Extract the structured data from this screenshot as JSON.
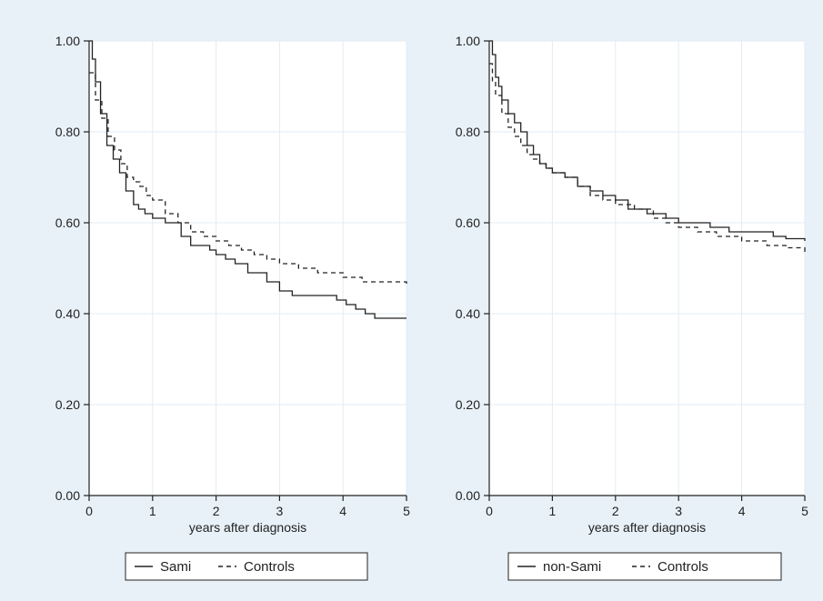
{
  "colors": {
    "background": "#e8f1f8",
    "plot_background": "#ffffff",
    "grid": "#e2ecf4",
    "line": "#222222"
  },
  "chart_data": [
    {
      "type": "line",
      "step": true,
      "xlabel": "years after diagnosis",
      "ylabel": "",
      "xlim": [
        0,
        5
      ],
      "ylim": [
        0,
        1
      ],
      "x_ticks": [
        "0",
        "1",
        "2",
        "3",
        "4",
        "5"
      ],
      "y_ticks": [
        "0.00",
        "0.20",
        "0.40",
        "0.60",
        "0.80",
        "1.00"
      ],
      "grid": true,
      "legend": "bottom",
      "series": [
        {
          "name": "Sami",
          "style": "solid",
          "x": [
            0,
            0.05,
            0.1,
            0.18,
            0.28,
            0.38,
            0.48,
            0.58,
            0.7,
            0.78,
            0.88,
            1.0,
            1.2,
            1.45,
            1.6,
            1.9,
            2.0,
            2.15,
            2.3,
            2.5,
            2.8,
            3.0,
            3.2,
            3.5,
            3.9,
            4.05,
            4.2,
            4.35,
            4.5,
            5.0
          ],
          "y": [
            1.0,
            0.96,
            0.91,
            0.84,
            0.77,
            0.74,
            0.71,
            0.67,
            0.64,
            0.63,
            0.62,
            0.61,
            0.6,
            0.57,
            0.55,
            0.54,
            0.53,
            0.52,
            0.51,
            0.49,
            0.47,
            0.45,
            0.44,
            0.44,
            0.43,
            0.42,
            0.41,
            0.4,
            0.39,
            0.39
          ]
        },
        {
          "name": "Controls",
          "style": "dashed",
          "x": [
            0,
            0.1,
            0.2,
            0.3,
            0.4,
            0.5,
            0.6,
            0.7,
            0.8,
            0.9,
            1.0,
            1.2,
            1.4,
            1.6,
            1.8,
            2.0,
            2.2,
            2.4,
            2.6,
            2.8,
            3.0,
            3.3,
            3.6,
            4.0,
            4.3,
            4.6,
            5.0
          ],
          "y": [
            0.93,
            0.87,
            0.83,
            0.79,
            0.76,
            0.73,
            0.7,
            0.69,
            0.68,
            0.66,
            0.65,
            0.62,
            0.6,
            0.58,
            0.57,
            0.56,
            0.55,
            0.54,
            0.53,
            0.52,
            0.51,
            0.5,
            0.49,
            0.48,
            0.47,
            0.47,
            0.46
          ]
        }
      ]
    },
    {
      "type": "line",
      "step": true,
      "xlabel": "years after diagnosis",
      "ylabel": "",
      "xlim": [
        0,
        5
      ],
      "ylim": [
        0,
        1
      ],
      "x_ticks": [
        "0",
        "1",
        "2",
        "3",
        "4",
        "5"
      ],
      "y_ticks": [
        "0.00",
        "0.20",
        "0.40",
        "0.60",
        "0.80",
        "1.00"
      ],
      "grid": true,
      "legend": "bottom",
      "series": [
        {
          "name": "non-Sami",
          "style": "solid",
          "x": [
            0,
            0.05,
            0.1,
            0.15,
            0.2,
            0.3,
            0.4,
            0.5,
            0.6,
            0.7,
            0.8,
            0.9,
            1.0,
            1.2,
            1.4,
            1.6,
            1.8,
            2.0,
            2.2,
            2.5,
            2.8,
            3.0,
            3.2,
            3.5,
            3.8,
            4.0,
            4.5,
            4.7,
            5.0
          ],
          "y": [
            1.0,
            0.97,
            0.92,
            0.9,
            0.87,
            0.84,
            0.82,
            0.8,
            0.77,
            0.75,
            0.73,
            0.72,
            0.71,
            0.7,
            0.68,
            0.67,
            0.66,
            0.65,
            0.63,
            0.62,
            0.61,
            0.6,
            0.6,
            0.59,
            0.58,
            0.58,
            0.57,
            0.565,
            0.56
          ]
        },
        {
          "name": "Controls",
          "style": "dashed",
          "x": [
            0,
            0.05,
            0.1,
            0.2,
            0.3,
            0.4,
            0.5,
            0.6,
            0.7,
            0.8,
            0.9,
            1.0,
            1.2,
            1.4,
            1.6,
            1.8,
            2.0,
            2.3,
            2.6,
            2.8,
            3.0,
            3.3,
            3.6,
            4.0,
            4.4,
            4.7,
            5.0
          ],
          "y": [
            0.95,
            0.91,
            0.88,
            0.84,
            0.81,
            0.79,
            0.77,
            0.75,
            0.74,
            0.73,
            0.72,
            0.71,
            0.7,
            0.68,
            0.66,
            0.65,
            0.64,
            0.63,
            0.61,
            0.6,
            0.59,
            0.58,
            0.57,
            0.56,
            0.55,
            0.545,
            0.535
          ]
        }
      ]
    }
  ]
}
